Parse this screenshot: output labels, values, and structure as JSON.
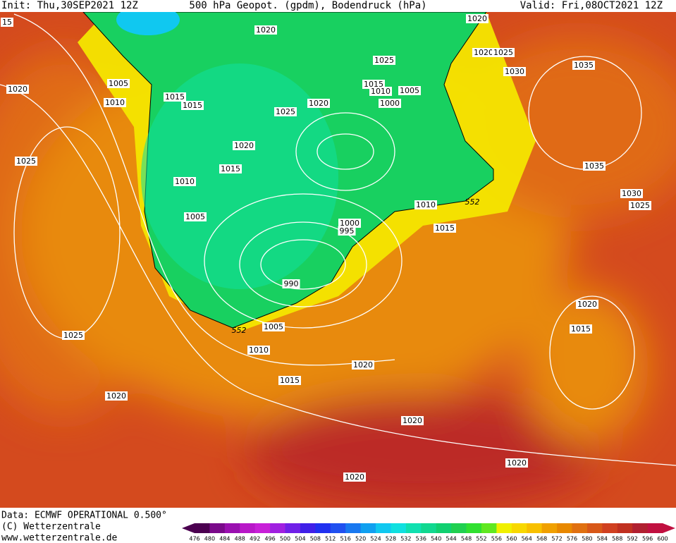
{
  "header": {
    "init": "Init: Thu,30SEP2021 12Z",
    "title": "500 hPa Geopot. (gpdm), Bodendruck (hPa)",
    "valid": "Valid: Fri,08OCT2021 12Z"
  },
  "isobar_labels": [
    "15",
    "1020",
    "1020",
    "1005",
    "1010",
    "1015",
    "1015",
    "1020",
    "1025",
    "1020",
    "1025",
    "1030",
    "1035",
    "1015",
    "1010",
    "1005",
    "1000",
    "1025",
    "1020",
    "1020",
    "1015",
    "1010",
    "1025",
    "1035",
    "1030",
    "1025",
    "1010",
    "1015",
    "1005",
    "1000",
    "995",
    "990",
    "1005",
    "1010",
    "1015",
    "1020",
    "1020",
    "1015",
    "1025",
    "1020",
    "1020",
    "1020",
    "1020"
  ],
  "contour_labels": [
    "552",
    "552"
  ],
  "footer": [
    "Data: ECMWF OPERATIONAL 0.500°",
    "(C) Wetterzentrale",
    "www.wetterzentrale.de"
  ],
  "legend": {
    "ticks": [
      476,
      480,
      484,
      488,
      492,
      496,
      500,
      504,
      508,
      512,
      516,
      520,
      524,
      528,
      532,
      536,
      540,
      544,
      548,
      552,
      556,
      560,
      564,
      568,
      572,
      576,
      580,
      584,
      588,
      592,
      596,
      600
    ],
    "colors": [
      "#4b0050",
      "#7a0a8a",
      "#9a10b0",
      "#b818c8",
      "#c820d8",
      "#a020e0",
      "#7020e8",
      "#4020e8",
      "#2030f0",
      "#2050f0",
      "#1878f0",
      "#10a0f0",
      "#10c8f0",
      "#10e0e0",
      "#10e0b0",
      "#10d890",
      "#10d070",
      "#20d050",
      "#30e030",
      "#60e820",
      "#f0f000",
      "#f8d800",
      "#f8c000",
      "#f0a000",
      "#e88800",
      "#e07010",
      "#d85818",
      "#d04020",
      "#c03020",
      "#b02030",
      "#c01040"
    ]
  }
}
